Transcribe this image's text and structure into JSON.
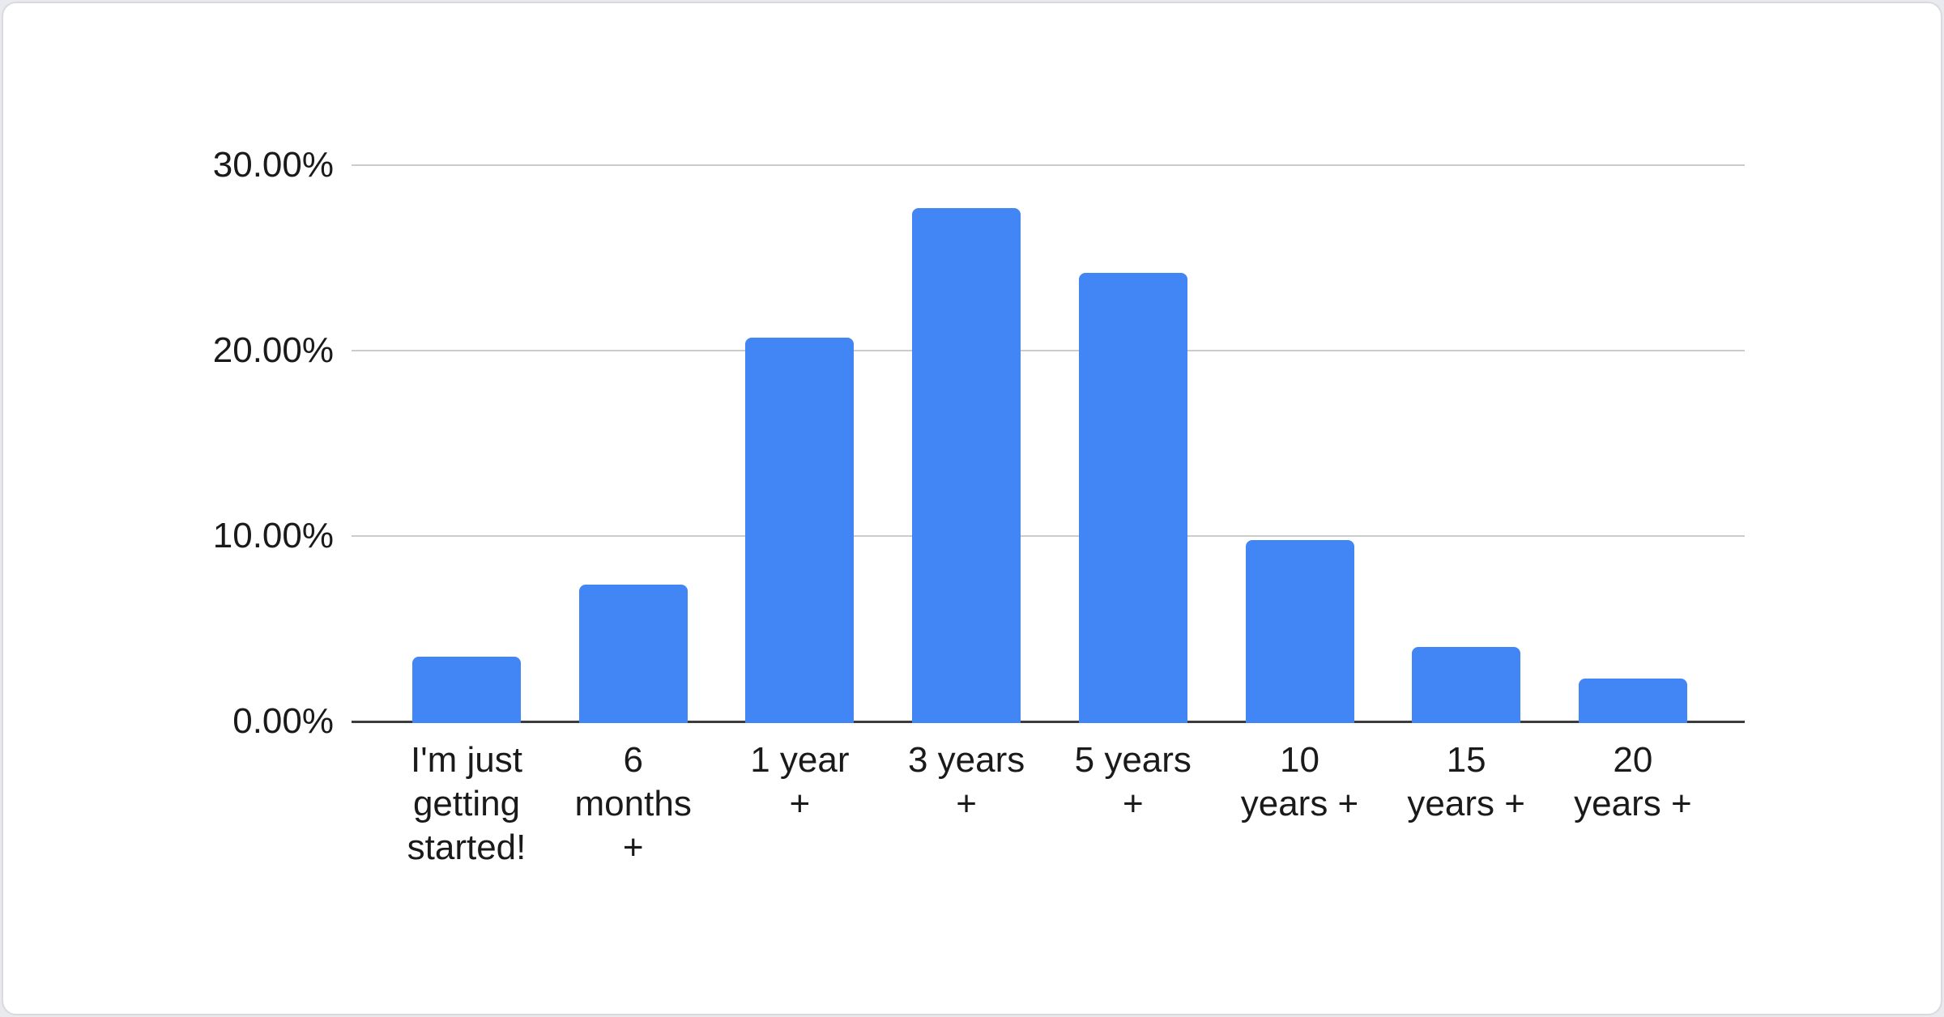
{
  "page": {
    "background_color": "#e8eaed",
    "card_background": "#ffffff",
    "card_border_color": "#d8dade"
  },
  "chart_data": {
    "type": "bar",
    "title": "",
    "xlabel": "",
    "ylabel": "",
    "legend": "none",
    "grid": true,
    "unit": "%",
    "bar_color": "#4285f4",
    "axis_line_color": "#3c3c3c",
    "gridline_color": "#cccccc",
    "tick_label_color": "#1a1a1a",
    "ylim": [
      0,
      30
    ],
    "y_ticks": [
      {
        "label": "0.00%",
        "value": 0
      },
      {
        "label": "10.00%",
        "value": 10
      },
      {
        "label": "20.00%",
        "value": 20
      },
      {
        "label": "30.00%",
        "value": 30
      }
    ],
    "categories": [
      "I'm just getting started!",
      "6 months +",
      "1 year +",
      "3 years +",
      "5 years +",
      "10 years +",
      "15 years +",
      "20 years +"
    ],
    "category_display": [
      "I'm just\ngetting\nstarted!",
      "6\nmonths\n+",
      "1 year\n+",
      "3 years\n+",
      "5 years\n+",
      "10\nyears +",
      "15\nyears +",
      "20\nyears +"
    ],
    "values": [
      3.5,
      7.4,
      20.7,
      27.7,
      24.2,
      9.8,
      4.0,
      2.3
    ]
  }
}
